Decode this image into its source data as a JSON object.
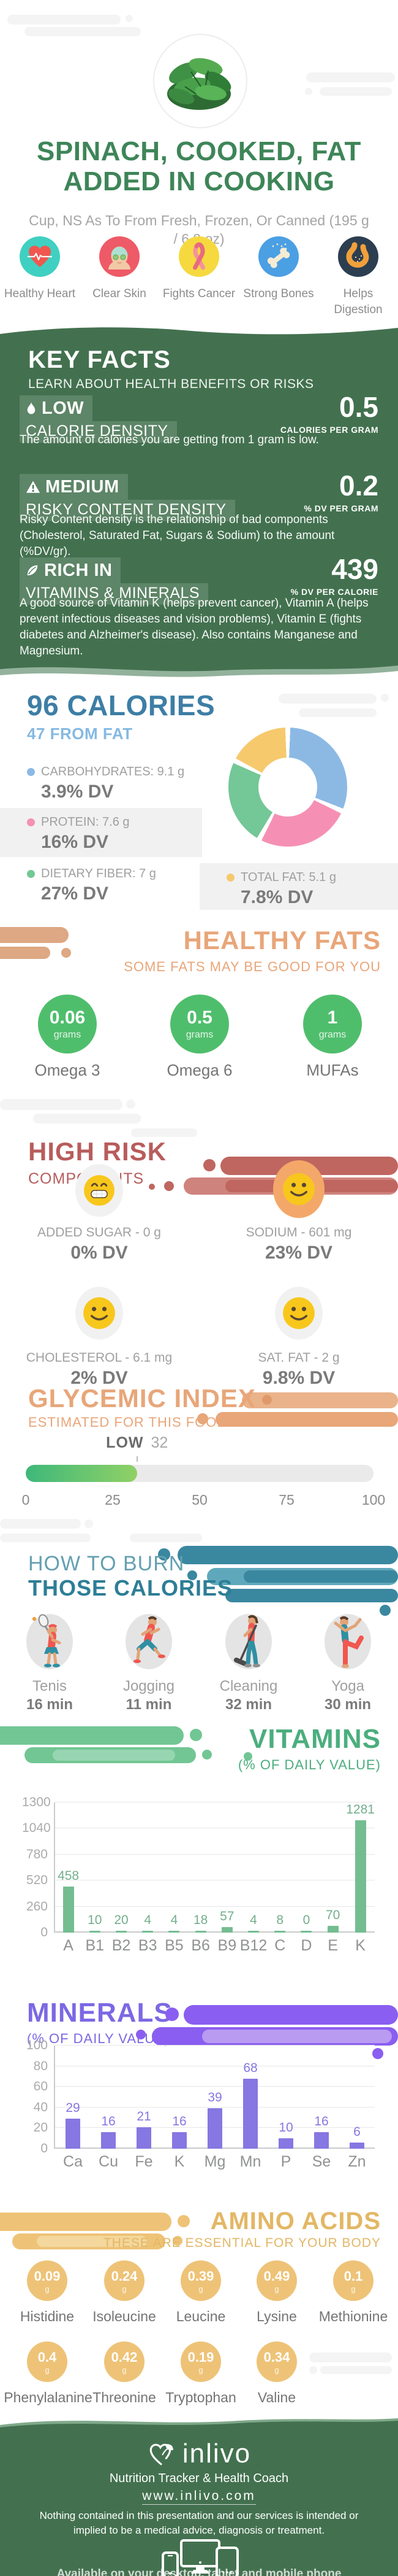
{
  "colors": {
    "brand_green": "#43714f",
    "title_green": "#3e8558",
    "calories_blue": "#3d7ea5",
    "calories_light_blue": "#85b9e2",
    "healthy_fats_orange": "#e8a679",
    "high_risk_red": "#b85c5c",
    "burn_teal": "#2d7e96",
    "vitamins_green": "#4bae7e",
    "minerals_purple": "#7c68e4",
    "amino_gold": "#e3b765"
  },
  "header": {
    "title": "SPINACH, COOKED, FAT ADDED IN COOKING",
    "subtitle": "Cup, NS As To From Fresh, Frozen, Or Canned (195 g / 6.9 oz)",
    "benefits": [
      {
        "label": "Healthy Heart"
      },
      {
        "label": "Clear Skin"
      },
      {
        "label": "Fights Cancer"
      },
      {
        "label": "Strong Bones"
      },
      {
        "label": "Helps Digestion"
      }
    ]
  },
  "key_facts": {
    "title": "KEY FACTS",
    "subtitle": "LEARN ABOUT HEALTH BENEFITS OR RISKS",
    "facts": [
      {
        "badge": "LOW",
        "category": "CALORIE DENSITY",
        "value": "0.5",
        "unit": "CALORIES PER GRAM",
        "description": "The amount of calories you are getting from 1 gram is low."
      },
      {
        "badge": "MEDIUM",
        "category": "RISKY CONTENT DENSITY",
        "value": "0.2",
        "unit": "% DV PER GRAM",
        "description": "Risky Content density is the relationship of bad components (Cholesterol, Saturated Fat, Sugars & Sodium) to the amount (%DV/gr)."
      },
      {
        "badge": "RICH IN",
        "category": "VITAMINS & MINERALS",
        "value": "439",
        "unit": "% DV PER CALORIE",
        "description": "A good source of Vitamin K (helps prevent cancer), Vitamin A (helps prevent infectious diseases and vision problems), Vitamin E (fights diabetes and Alzheimer's disease). Also contains Manganese and Magnesium."
      }
    ]
  },
  "healthy_fats": {
    "title": "HEALTHY FATS",
    "subtitle": "SOME FATS MAY BE GOOD FOR YOU",
    "items": [
      {
        "value": "0.06",
        "unit": "grams",
        "label": "Omega 3"
      },
      {
        "value": "0.5",
        "unit": "grams",
        "label": "Omega 6"
      },
      {
        "value": "1",
        "unit": "grams",
        "label": "MUFAs"
      }
    ]
  },
  "high_risk": {
    "title": "HIGH RISK",
    "subtitle": "COMPONENTS",
    "items": [
      {
        "label": "ADDED SUGAR - 0 g",
        "dv": "0% DV"
      },
      {
        "label": "SODIUM - 601 mg",
        "dv": "23% DV"
      },
      {
        "label": "CHOLESTEROL - 6.1 mg",
        "dv": "2% DV"
      },
      {
        "label": "SAT. FAT - 2 g",
        "dv": "9.8% DV"
      }
    ]
  },
  "burn": {
    "title_line1": "HOW TO BURN",
    "title_line2": "THOSE CALORIES",
    "activities": [
      {
        "label": "Tenis",
        "minutes": "16 min"
      },
      {
        "label": "Jogging",
        "minutes": "11 min"
      },
      {
        "label": "Cleaning",
        "minutes": "32 min"
      },
      {
        "label": "Yoga",
        "minutes": "30 min"
      }
    ]
  },
  "amino_acids": {
    "title": "AMINO ACIDS",
    "subtitle": "THESE ARE ESSENTIAL FOR YOUR BODY",
    "items": [
      {
        "value": "0.09",
        "unit": "g",
        "label": "Histidine"
      },
      {
        "value": "0.24",
        "unit": "g",
        "label": "Isoleucine"
      },
      {
        "value": "0.39",
        "unit": "g",
        "label": "Leucine"
      },
      {
        "value": "0.49",
        "unit": "g",
        "label": "Lysine"
      },
      {
        "value": "0.1",
        "unit": "g",
        "label": "Methionine"
      },
      {
        "value": "0.4",
        "unit": "g",
        "label": "Phenylalanine"
      },
      {
        "value": "0.42",
        "unit": "g",
        "label": "Threonine"
      },
      {
        "value": "0.19",
        "unit": "g",
        "label": "Tryptophan"
      },
      {
        "value": "0.34",
        "unit": "g",
        "label": "Valine"
      }
    ]
  },
  "footer": {
    "brand": "inlivo",
    "tagline": "Nutrition Tracker & Health Coach",
    "website": "www.inlivo.com",
    "disclaimer": "Nothing contained in this presentation and our services is intended or implied to be a medical advice, diagnosis or treatment.",
    "availability": "Available on your desktop, tablet and mobile phone"
  },
  "chart_data": [
    {
      "type": "pie",
      "title": "96 CALORIES",
      "subtitle": "47 FROM FAT",
      "legend_position": "left",
      "slices": [
        {
          "display": "CARBOHYDRATES: 9.1 g",
          "dv": "3.9% DV",
          "value": 9.1,
          "color": "#8cb9e4"
        },
        {
          "display": "PROTEIN: 7.6 g",
          "dv": "16% DV",
          "value": 7.6,
          "color": "#f590b4"
        },
        {
          "display": "DIETARY FIBER: 7 g",
          "dv": "27% DV",
          "value": 7,
          "color": "#74c796"
        },
        {
          "display": "TOTAL FAT: 5.1 g",
          "dv": "7.8% DV",
          "value": 5.1,
          "color": "#f6c96d"
        }
      ]
    },
    {
      "type": "gauge",
      "title": "GLYCEMIC INDEX",
      "subtitle": "ESTIMATED FOR THIS FOOD",
      "label": "LOW",
      "value": 32,
      "min": 0,
      "max": 100,
      "ticks": [
        0,
        25,
        50,
        75,
        100
      ]
    },
    {
      "type": "bar",
      "title": "VITAMINS",
      "subtitle": "(% OF DAILY VALUE)",
      "categories": [
        "A",
        "B1",
        "B2",
        "B3",
        "B5",
        "B6",
        "B9",
        "B12",
        "C",
        "D",
        "E",
        "K"
      ],
      "values": [
        458,
        10,
        20,
        4,
        4,
        18,
        57,
        4,
        8,
        0,
        70,
        1281
      ],
      "ylim": [
        0,
        1300
      ],
      "yticks": [
        0,
        260,
        520,
        780,
        1040,
        1300
      ],
      "grid": true,
      "bar_color": "#74bd90",
      "label_color": "#74ae8e"
    },
    {
      "type": "bar",
      "title": "MINERALS",
      "subtitle": "(% OF DAILY VALUE)",
      "categories": [
        "Ca",
        "Cu",
        "Fe",
        "K",
        "Mg",
        "Mn",
        "P",
        "Se",
        "Zn"
      ],
      "values": [
        29,
        16,
        21,
        16,
        39,
        68,
        10,
        16,
        6
      ],
      "ylim": [
        0,
        100
      ],
      "yticks": [
        0,
        20,
        40,
        60,
        80,
        100
      ],
      "grid": true,
      "bar_color": "#8677e2",
      "label_color": "#8677e2"
    }
  ]
}
